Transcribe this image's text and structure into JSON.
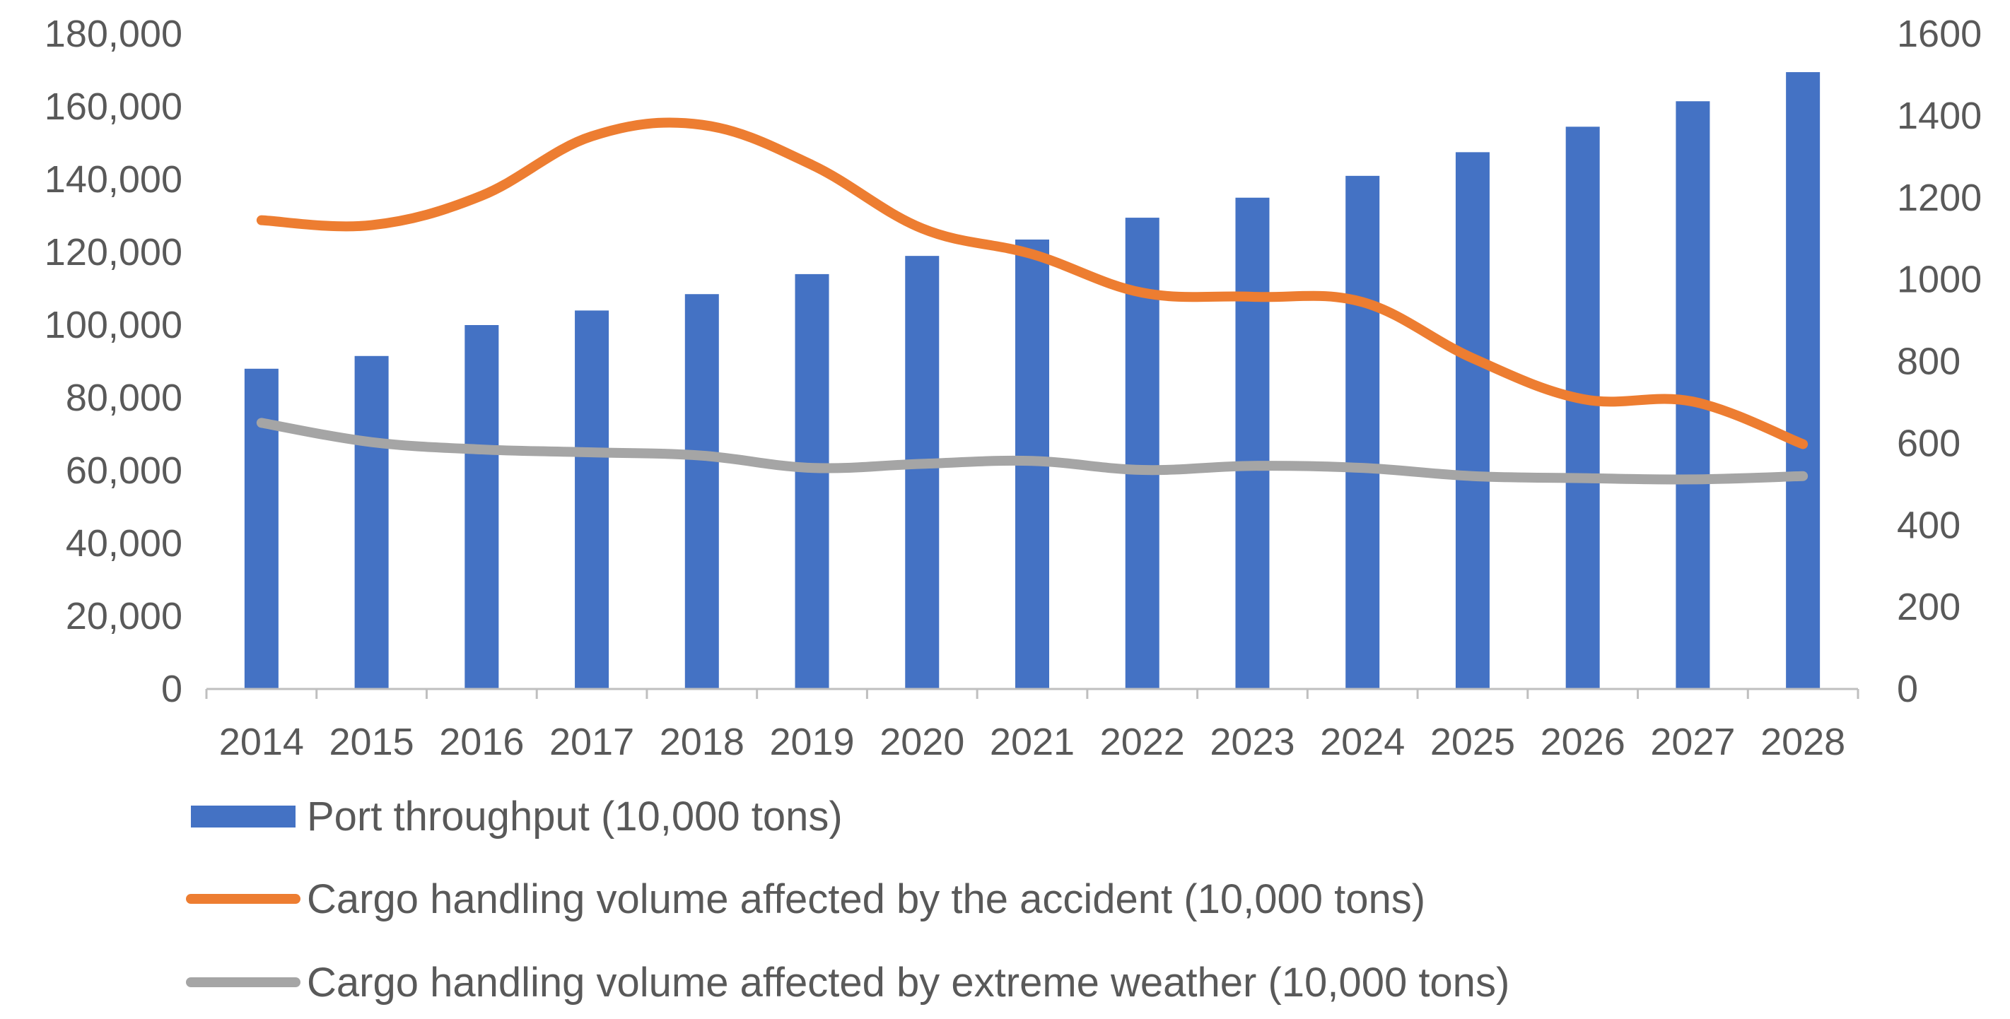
{
  "chart_data": {
    "type": "bar",
    "categories": [
      "2014",
      "2015",
      "2016",
      "2017",
      "2018",
      "2019",
      "2020",
      "2021",
      "2022",
      "2023",
      "2024",
      "2025",
      "2026",
      "2027",
      "2028"
    ],
    "y_left": {
      "ylim": [
        0,
        180000
      ],
      "ticks": [
        "0",
        "20,000",
        "40,000",
        "60,000",
        "80,000",
        "100,000",
        "120,000",
        "140,000",
        "160,000",
        "180,000"
      ],
      "tick_values": [
        0,
        20000,
        40000,
        60000,
        80000,
        100000,
        120000,
        140000,
        160000,
        180000
      ]
    },
    "y_right": {
      "ylim": [
        0,
        1600
      ],
      "ticks": [
        "0",
        "200",
        "400",
        "600",
        "800",
        "1000",
        "1200",
        "1400",
        "1600"
      ],
      "tick_values": [
        0,
        200,
        400,
        600,
        800,
        1000,
        1200,
        1400,
        1600
      ]
    },
    "series": [
      {
        "name": "Port throughput  (10,000 tons)",
        "type": "bar",
        "axis": "left",
        "color": "#4472C4",
        "values": [
          88000,
          91500,
          100000,
          104000,
          108500,
          114000,
          119000,
          123500,
          129500,
          135000,
          141000,
          147500,
          154500,
          161500,
          169500
        ]
      },
      {
        "name": "Cargo handling volume affected by the accident (10,000 tons)",
        "type": "line",
        "axis": "right",
        "color": "#ED7D31",
        "values": [
          1145,
          1133,
          1205,
          1350,
          1378,
          1280,
          1125,
          1062,
          968,
          958,
          945,
          808,
          708,
          702,
          598
        ]
      },
      {
        "name": "Cargo handling volume affected by extreme weather (10,000 tons)",
        "type": "line",
        "axis": "right",
        "color": "#A5A5A5",
        "values": [
          650,
          603,
          585,
          578,
          570,
          540,
          550,
          557,
          535,
          545,
          540,
          520,
          515,
          512,
          520
        ]
      }
    ],
    "grid": false,
    "legend_position": "bottom"
  }
}
